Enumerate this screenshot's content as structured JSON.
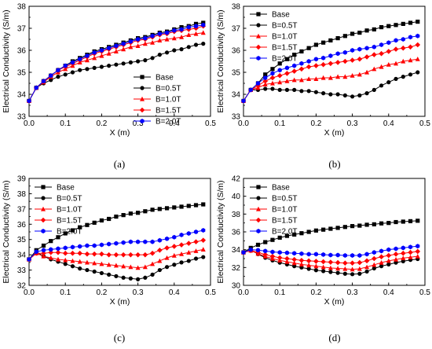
{
  "chart_data": [
    {
      "type": "line",
      "panel_label": "(a)",
      "xlabel": "X (m)",
      "ylabel": "Electrical Conductivity (S/m)",
      "xlim": [
        0.0,
        0.5
      ],
      "ylim": [
        33,
        38
      ],
      "xticks": [
        "0.0",
        "0.1",
        "0.2",
        "0.3",
        "0.4",
        "0.5"
      ],
      "yticks": [
        "33",
        "34",
        "35",
        "36",
        "37",
        "38"
      ],
      "legend_position": "bottom-right",
      "x": [
        0,
        0.02,
        0.04,
        0.06,
        0.08,
        0.1,
        0.12,
        0.14,
        0.16,
        0.18,
        0.2,
        0.22,
        0.24,
        0.26,
        0.28,
        0.3,
        0.32,
        0.34,
        0.36,
        0.38,
        0.4,
        0.42,
        0.44,
        0.46,
        0.48
      ],
      "series": [
        {
          "name": "Base",
          "marker": "square",
          "color": "#000000",
          "values": [
            33.7,
            34.3,
            34.6,
            34.85,
            35.1,
            35.3,
            35.5,
            35.65,
            35.8,
            35.95,
            36.05,
            36.15,
            36.25,
            36.35,
            36.45,
            36.55,
            36.6,
            36.7,
            36.8,
            36.85,
            36.95,
            37.05,
            37.1,
            37.2,
            37.25
          ]
        },
        {
          "name": "B=0.5T",
          "marker": "circle",
          "color": "#000000",
          "values": [
            33.7,
            34.3,
            34.5,
            34.65,
            34.8,
            34.9,
            35.0,
            35.1,
            35.15,
            35.2,
            35.25,
            35.3,
            35.35,
            35.4,
            35.45,
            35.5,
            35.55,
            35.65,
            35.8,
            35.9,
            36.0,
            36.05,
            36.15,
            36.25,
            36.3
          ]
        },
        {
          "name": "B=1.0T",
          "marker": "triangle",
          "color": "#ff0000",
          "values": [
            33.7,
            34.3,
            34.55,
            34.8,
            35.0,
            35.15,
            35.3,
            35.45,
            35.55,
            35.65,
            35.75,
            35.85,
            35.95,
            36.05,
            36.15,
            36.2,
            36.3,
            36.35,
            36.45,
            36.5,
            36.55,
            36.6,
            36.7,
            36.75,
            36.8
          ]
        },
        {
          "name": "B=1.5T",
          "marker": "diamond",
          "color": "#ff0000",
          "values": [
            33.7,
            34.3,
            34.6,
            34.85,
            35.1,
            35.25,
            35.4,
            35.55,
            35.7,
            35.85,
            35.95,
            36.05,
            36.15,
            36.25,
            36.35,
            36.45,
            36.5,
            36.6,
            36.7,
            36.75,
            36.85,
            36.9,
            36.95,
            37.0,
            37.1
          ]
        },
        {
          "name": "B=2.0T",
          "marker": "hexagon",
          "color": "#0000ff",
          "values": [
            33.7,
            34.3,
            34.6,
            34.85,
            35.1,
            35.3,
            35.45,
            35.6,
            35.75,
            35.9,
            36.0,
            36.1,
            36.2,
            36.3,
            36.4,
            36.5,
            36.55,
            36.65,
            36.75,
            36.8,
            36.9,
            36.95,
            37.05,
            37.1,
            37.15
          ]
        }
      ]
    },
    {
      "type": "line",
      "panel_label": "(b)",
      "xlabel": "X (m)",
      "ylabel": "Electrical Conductivity (S/m)",
      "xlim": [
        0.0,
        0.5
      ],
      "ylim": [
        33,
        38
      ],
      "xticks": [
        "0.0",
        "0.1",
        "0.2",
        "0.3",
        "0.4",
        "0.5"
      ],
      "yticks": [
        "33",
        "34",
        "35",
        "36",
        "37",
        "38"
      ],
      "legend_position": "top-left",
      "x": [
        0,
        0.02,
        0.04,
        0.06,
        0.08,
        0.1,
        0.12,
        0.14,
        0.16,
        0.18,
        0.2,
        0.22,
        0.24,
        0.26,
        0.28,
        0.3,
        0.32,
        0.34,
        0.36,
        0.38,
        0.4,
        0.42,
        0.44,
        0.46,
        0.48
      ],
      "series": [
        {
          "name": "Base",
          "marker": "square",
          "color": "#000000",
          "values": [
            33.7,
            34.2,
            34.5,
            34.9,
            35.15,
            35.4,
            35.6,
            35.8,
            35.95,
            36.1,
            36.25,
            36.35,
            36.45,
            36.55,
            36.65,
            36.75,
            36.8,
            36.9,
            36.95,
            37.05,
            37.1,
            37.15,
            37.2,
            37.25,
            37.3
          ]
        },
        {
          "name": "B=0.5T",
          "marker": "circle",
          "color": "#000000",
          "values": [
            33.7,
            34.2,
            34.2,
            34.25,
            34.25,
            34.2,
            34.2,
            34.2,
            34.15,
            34.15,
            34.1,
            34.05,
            34.0,
            34.0,
            33.95,
            33.9,
            33.95,
            34.05,
            34.2,
            34.4,
            34.55,
            34.7,
            34.8,
            34.9,
            35.0
          ]
        },
        {
          "name": "B=1.0T",
          "marker": "triangle",
          "color": "#ff0000",
          "values": [
            33.7,
            34.2,
            34.3,
            34.45,
            34.5,
            34.55,
            34.6,
            34.65,
            34.65,
            34.7,
            34.7,
            34.75,
            34.75,
            34.8,
            34.8,
            34.85,
            34.9,
            35.0,
            35.15,
            35.25,
            35.35,
            35.4,
            35.5,
            35.55,
            35.6
          ]
        },
        {
          "name": "B=1.5T",
          "marker": "diamond",
          "color": "#ff0000",
          "values": [
            33.7,
            34.2,
            34.4,
            34.6,
            34.75,
            34.85,
            34.95,
            35.05,
            35.15,
            35.25,
            35.3,
            35.35,
            35.4,
            35.45,
            35.5,
            35.55,
            35.6,
            35.7,
            35.8,
            35.85,
            35.95,
            36.05,
            36.1,
            36.15,
            36.25
          ]
        },
        {
          "name": "B=2.0T",
          "marker": "hexagon",
          "color": "#0000ff",
          "values": [
            33.7,
            34.2,
            34.5,
            34.75,
            34.95,
            35.1,
            35.2,
            35.3,
            35.4,
            35.5,
            35.6,
            35.65,
            35.75,
            35.85,
            35.9,
            36.0,
            36.05,
            36.1,
            36.15,
            36.25,
            36.35,
            36.45,
            36.5,
            36.6,
            36.65
          ]
        }
      ]
    },
    {
      "type": "line",
      "panel_label": "(c)",
      "xlabel": "X (m)",
      "ylabel": "Electrical Conductivity (S/m)",
      "xlim": [
        0.0,
        0.5
      ],
      "ylim": [
        32,
        39
      ],
      "xticks": [
        "0.0",
        "0.1",
        "0.2",
        "0.3",
        "0.4",
        "0.5"
      ],
      "yticks": [
        "32",
        "33",
        "34",
        "35",
        "36",
        "37",
        "38",
        "39"
      ],
      "legend_position": "top-left",
      "x": [
        0,
        0.02,
        0.04,
        0.06,
        0.08,
        0.1,
        0.12,
        0.14,
        0.16,
        0.18,
        0.2,
        0.22,
        0.24,
        0.26,
        0.28,
        0.3,
        0.32,
        0.34,
        0.36,
        0.38,
        0.4,
        0.42,
        0.44,
        0.46,
        0.48
      ],
      "series": [
        {
          "name": "Base",
          "marker": "square",
          "color": "#000000",
          "values": [
            33.7,
            34.3,
            34.6,
            34.9,
            35.15,
            35.4,
            35.6,
            35.8,
            35.95,
            36.1,
            36.25,
            36.35,
            36.5,
            36.6,
            36.7,
            36.75,
            36.85,
            36.95,
            37.0,
            37.05,
            37.1,
            37.15,
            37.2,
            37.25,
            37.3
          ]
        },
        {
          "name": "B=0.5T",
          "marker": "circle",
          "color": "#000000",
          "values": [
            33.7,
            34.2,
            33.9,
            33.7,
            33.55,
            33.4,
            33.25,
            33.1,
            33.0,
            32.9,
            32.8,
            32.7,
            32.6,
            32.5,
            32.45,
            32.4,
            32.5,
            32.7,
            33.0,
            33.2,
            33.35,
            33.5,
            33.6,
            33.75,
            33.85
          ]
        },
        {
          "name": "B=1.0T",
          "marker": "triangle",
          "color": "#ff0000",
          "values": [
            33.7,
            34.1,
            33.9,
            33.8,
            33.7,
            33.65,
            33.6,
            33.55,
            33.5,
            33.45,
            33.4,
            33.35,
            33.3,
            33.25,
            33.2,
            33.15,
            33.2,
            33.4,
            33.6,
            33.8,
            33.95,
            34.05,
            34.15,
            34.25,
            34.35
          ]
        },
        {
          "name": "B=1.5T",
          "marker": "diamond",
          "color": "#ff0000",
          "values": [
            33.7,
            34.1,
            34.1,
            34.15,
            34.15,
            34.1,
            34.1,
            34.1,
            34.05,
            34.05,
            34.05,
            34.0,
            34.0,
            34.0,
            34.0,
            34.0,
            34.0,
            34.1,
            34.3,
            34.45,
            34.55,
            34.65,
            34.75,
            34.85,
            34.95
          ]
        },
        {
          "name": "B=2.0T",
          "marker": "hexagon",
          "color": "#0000ff",
          "values": [
            33.7,
            34.2,
            34.3,
            34.35,
            34.4,
            34.45,
            34.5,
            34.55,
            34.6,
            34.6,
            34.65,
            34.7,
            34.75,
            34.8,
            34.85,
            34.85,
            34.85,
            34.85,
            34.95,
            35.05,
            35.15,
            35.3,
            35.4,
            35.5,
            35.6
          ]
        }
      ]
    },
    {
      "type": "line",
      "panel_label": "(d)",
      "xlabel": "X (m)",
      "ylabel": "Electrical Conductivity (S/m)",
      "xlim": [
        0.0,
        0.5
      ],
      "ylim": [
        30,
        42
      ],
      "xticks": [
        "0.0",
        "0.1",
        "0.2",
        "0.3",
        "0.4",
        "0.5"
      ],
      "yticks": [
        "30",
        "32",
        "34",
        "36",
        "38",
        "40",
        "42"
      ],
      "legend_position": "top-left",
      "x": [
        0,
        0.02,
        0.04,
        0.06,
        0.08,
        0.1,
        0.12,
        0.14,
        0.16,
        0.18,
        0.2,
        0.22,
        0.24,
        0.26,
        0.28,
        0.3,
        0.32,
        0.34,
        0.36,
        0.38,
        0.4,
        0.42,
        0.44,
        0.46,
        0.48
      ],
      "series": [
        {
          "name": "Base",
          "marker": "square",
          "color": "#000000",
          "values": [
            33.7,
            34.2,
            34.55,
            34.85,
            35.1,
            35.35,
            35.55,
            35.7,
            35.85,
            36.0,
            36.15,
            36.25,
            36.35,
            36.45,
            36.55,
            36.65,
            36.7,
            36.8,
            36.85,
            36.95,
            37.0,
            37.1,
            37.15,
            37.2,
            37.25
          ]
        },
        {
          "name": "B=0.5T",
          "marker": "circle",
          "color": "#000000",
          "values": [
            33.7,
            34.0,
            33.5,
            33.1,
            32.8,
            32.55,
            32.35,
            32.15,
            32.0,
            31.85,
            31.7,
            31.6,
            31.5,
            31.4,
            31.3,
            31.25,
            31.3,
            31.55,
            31.9,
            32.15,
            32.35,
            32.55,
            32.7,
            32.85,
            32.95
          ]
        },
        {
          "name": "B=1.0T",
          "marker": "triangle",
          "color": "#ff0000",
          "values": [
            33.7,
            33.9,
            33.55,
            33.25,
            33.0,
            32.8,
            32.65,
            32.5,
            32.35,
            32.25,
            32.15,
            32.05,
            31.95,
            31.9,
            31.85,
            31.8,
            31.85,
            32.05,
            32.3,
            32.55,
            32.75,
            32.9,
            33.05,
            33.15,
            33.25
          ]
        },
        {
          "name": "B=1.5T",
          "marker": "diamond",
          "color": "#ff0000",
          "values": [
            33.7,
            33.9,
            33.7,
            33.45,
            33.25,
            33.1,
            33.0,
            32.9,
            32.8,
            32.75,
            32.7,
            32.65,
            32.6,
            32.55,
            32.5,
            32.5,
            32.55,
            32.75,
            33.0,
            33.2,
            33.35,
            33.5,
            33.6,
            33.7,
            33.8
          ]
        },
        {
          "name": "B=2.0T",
          "marker": "hexagon",
          "color": "#0000ff",
          "values": [
            33.7,
            34.0,
            33.95,
            33.85,
            33.75,
            33.7,
            33.65,
            33.6,
            33.55,
            33.5,
            33.5,
            33.45,
            33.4,
            33.4,
            33.35,
            33.35,
            33.35,
            33.5,
            33.7,
            33.85,
            34.0,
            34.1,
            34.2,
            34.3,
            34.4
          ]
        }
      ]
    }
  ]
}
